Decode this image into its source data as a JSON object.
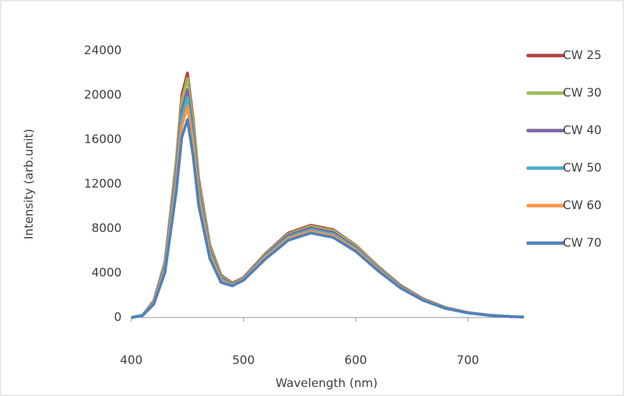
{
  "chart_data": {
    "type": "line",
    "x_label": "Wavelength (nm)",
    "y_label": "Intensity (arb.unit)",
    "x": [
      400,
      410,
      420,
      430,
      440,
      445,
      450,
      455,
      460,
      470,
      480,
      490,
      500,
      520,
      540,
      560,
      580,
      600,
      620,
      640,
      660,
      680,
      700,
      720,
      740,
      750
    ],
    "series": [
      {
        "name": "CW 25",
        "color": "#b5423f",
        "values": [
          0,
          200,
          1500,
          5000,
          14000,
          20000,
          22000,
          18000,
          12500,
          6500,
          3800,
          3100,
          3600,
          5800,
          7600,
          8300,
          7900,
          6500,
          4600,
          2900,
          1700,
          900,
          450,
          200,
          80,
          40
        ]
      },
      {
        "name": "CW 30",
        "color": "#9bbb59",
        "values": [
          0,
          200,
          1450,
          4900,
          13700,
          19500,
          21500,
          17600,
          12200,
          6350,
          3700,
          3050,
          3550,
          5750,
          7500,
          8200,
          7800,
          6450,
          4550,
          2850,
          1700,
          900,
          450,
          200,
          80,
          40
        ]
      },
      {
        "name": "CW 40",
        "color": "#8064a2",
        "values": [
          0,
          190,
          1400,
          4650,
          13000,
          18600,
          20500,
          16700,
          11600,
          6050,
          3550,
          3000,
          3500,
          5650,
          7400,
          8050,
          7650,
          6300,
          4450,
          2800,
          1650,
          870,
          440,
          190,
          80,
          40
        ]
      },
      {
        "name": "CW 50",
        "color": "#4bacc6",
        "values": [
          0,
          180,
          1350,
          4500,
          12600,
          18000,
          19800,
          16200,
          11250,
          5850,
          3450,
          2950,
          3450,
          5550,
          7250,
          7900,
          7500,
          6200,
          4400,
          2750,
          1600,
          850,
          430,
          190,
          75,
          35
        ]
      },
      {
        "name": "CW 60",
        "color": "#f79646",
        "values": [
          0,
          170,
          1300,
          4300,
          12000,
          17200,
          19000,
          15500,
          10750,
          5600,
          3300,
          2900,
          3400,
          5450,
          7100,
          7750,
          7350,
          6100,
          4300,
          2700,
          1600,
          840,
          420,
          185,
          75,
          35
        ]
      },
      {
        "name": "CW 70",
        "color": "#4f81bd",
        "values": [
          0,
          160,
          1200,
          4050,
          11300,
          16200,
          17800,
          14600,
          10100,
          5300,
          3150,
          2850,
          3350,
          5300,
          6950,
          7600,
          7200,
          5950,
          4200,
          2650,
          1550,
          820,
          410,
          180,
          70,
          35
        ]
      }
    ],
    "xlim": [
      400,
      750
    ],
    "xticks": [
      400,
      500,
      600,
      700
    ],
    "ylim": [
      0,
      24000
    ],
    "yticks": [
      0,
      4000,
      8000,
      12000,
      16000,
      20000,
      24000
    ],
    "grid": false,
    "legend": "right"
  }
}
